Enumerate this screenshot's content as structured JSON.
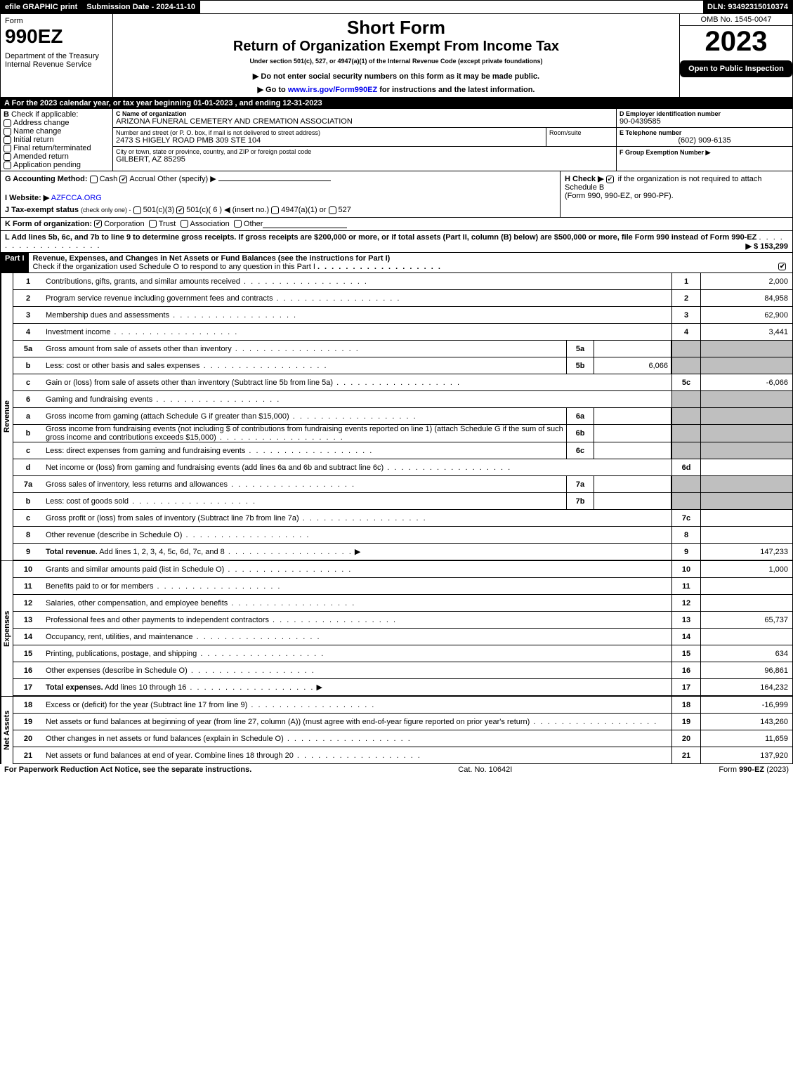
{
  "topbar": {
    "efile": "efile GRAPHIC print",
    "subdate_label": "Submission Date - 2024-11-10",
    "dln": "DLN: 93492315010374"
  },
  "header": {
    "form_word": "Form",
    "form_no": "990EZ",
    "dept1": "Department of the Treasury",
    "dept2": "Internal Revenue Service",
    "title1": "Short Form",
    "title2": "Return of Organization Exempt From Income Tax",
    "subtitle": "Under section 501(c), 527, or 4947(a)(1) of the Internal Revenue Code (except private foundations)",
    "note1": "▶ Do not enter social security numbers on this form as it may be made public.",
    "note2": "▶ Go to www.irs.gov/Form990EZ for instructions and the latest information.",
    "note2_link": "www.irs.gov/Form990EZ",
    "omb": "OMB No. 1545-0047",
    "year": "2023",
    "open": "Open to Public Inspection"
  },
  "A": "A  For the 2023 calendar year, or tax year beginning 01-01-2023 , and ending 12-31-2023",
  "B": {
    "label": "B",
    "check_if": "Check if applicable:",
    "opts": [
      "Address change",
      "Name change",
      "Initial return",
      "Final return/terminated",
      "Amended return",
      "Application pending"
    ]
  },
  "C": {
    "name_label": "C Name of organization",
    "name": "ARIZONA FUNERAL CEMETERY AND CREMATION ASSOCIATION",
    "addr_label": "Number and street (or P. O. box, if mail is not delivered to street address)",
    "room_label": "Room/suite",
    "addr": "2473 S HIGELY ROAD PMB 309 STE 104",
    "city_label": "City or town, state or province, country, and ZIP or foreign postal code",
    "city": "GILBERT, AZ  85295"
  },
  "D": {
    "label": "D Employer identification number",
    "val": "90-0439585"
  },
  "E": {
    "label": "E Telephone number",
    "val": "(602) 909-6135"
  },
  "F": {
    "label": "F Group Exemption Number  ▶"
  },
  "G": {
    "label": "G Accounting Method:",
    "cash": "Cash",
    "accrual": "Accrual",
    "other": "Other (specify) ▶"
  },
  "H": {
    "text1": "H  Check ▶",
    "text2": "if the organization is not required to attach Schedule B",
    "text3": "(Form 990, 990-EZ, or 990-PF)."
  },
  "I": {
    "label": "I Website: ▶",
    "val": "AZFCCA.ORG"
  },
  "J": {
    "label": "J Tax-exempt status",
    "sub": "(check only one) ‐",
    "o1": "501(c)(3)",
    "o2": "501(c)( 6 ) ◀ (insert no.)",
    "o3": "4947(a)(1) or",
    "o4": "527"
  },
  "K": {
    "label": "K Form of organization:",
    "o1": "Corporation",
    "o2": "Trust",
    "o3": "Association",
    "o4": "Other"
  },
  "L": {
    "text": "L Add lines 5b, 6c, and 7b to line 9 to determine gross receipts. If gross receipts are $200,000 or more, or if total assets (Part II, column (B) below) are $500,000 or more, file Form 990 instead of Form 990-EZ",
    "amount": "▶ $ 153,299"
  },
  "partI": {
    "tag": "Part I",
    "title": "Revenue, Expenses, and Changes in Net Assets or Fund Balances (see the instructions for Part I)",
    "check": "Check if the organization used Schedule O to respond to any question in this Part I"
  },
  "sections": {
    "revenue": "Revenue",
    "expenses": "Expenses",
    "netassets": "Net Assets"
  },
  "lines": {
    "1": {
      "n": "1",
      "d": "Contributions, gifts, grants, and similar amounts received",
      "r": "1",
      "v": "2,000"
    },
    "2": {
      "n": "2",
      "d": "Program service revenue including government fees and contracts",
      "r": "2",
      "v": "84,958"
    },
    "3": {
      "n": "3",
      "d": "Membership dues and assessments",
      "r": "3",
      "v": "62,900"
    },
    "4": {
      "n": "4",
      "d": "Investment income",
      "r": "4",
      "v": "3,441"
    },
    "5a": {
      "n": "5a",
      "d": "Gross amount from sale of assets other than inventory",
      "s": "5a",
      "sv": ""
    },
    "5b": {
      "n": "b",
      "d": "Less: cost or other basis and sales expenses",
      "s": "5b",
      "sv": "6,066"
    },
    "5c": {
      "n": "c",
      "d": "Gain or (loss) from sale of assets other than inventory (Subtract line 5b from line 5a)",
      "r": "5c",
      "v": "-6,066"
    },
    "6": {
      "n": "6",
      "d": "Gaming and fundraising events"
    },
    "6a": {
      "n": "a",
      "d": "Gross income from gaming (attach Schedule G if greater than $15,000)",
      "s": "6a",
      "sv": ""
    },
    "6b": {
      "n": "b",
      "d": "Gross income from fundraising events (not including $                of contributions from fundraising events reported on line 1) (attach Schedule G if the sum of such gross income and contributions exceeds $15,000)",
      "s": "6b",
      "sv": ""
    },
    "6c": {
      "n": "c",
      "d": "Less: direct expenses from gaming and fundraising events",
      "s": "6c",
      "sv": ""
    },
    "6d": {
      "n": "d",
      "d": "Net income or (loss) from gaming and fundraising events (add lines 6a and 6b and subtract line 6c)",
      "r": "6d",
      "v": ""
    },
    "7a": {
      "n": "7a",
      "d": "Gross sales of inventory, less returns and allowances",
      "s": "7a",
      "sv": ""
    },
    "7b": {
      "n": "b",
      "d": "Less: cost of goods sold",
      "s": "7b",
      "sv": ""
    },
    "7c": {
      "n": "c",
      "d": "Gross profit or (loss) from sales of inventory (Subtract line 7b from line 7a)",
      "r": "7c",
      "v": ""
    },
    "8": {
      "n": "8",
      "d": "Other revenue (describe in Schedule O)",
      "r": "8",
      "v": ""
    },
    "9": {
      "n": "9",
      "d": "Total revenue. Add lines 1, 2, 3, 4, 5c, 6d, 7c, and 8",
      "r": "9",
      "v": "147,233",
      "bold": true,
      "arrow": true
    },
    "10": {
      "n": "10",
      "d": "Grants and similar amounts paid (list in Schedule O)",
      "r": "10",
      "v": "1,000"
    },
    "11": {
      "n": "11",
      "d": "Benefits paid to or for members",
      "r": "11",
      "v": ""
    },
    "12": {
      "n": "12",
      "d": "Salaries, other compensation, and employee benefits",
      "r": "12",
      "v": ""
    },
    "13": {
      "n": "13",
      "d": "Professional fees and other payments to independent contractors",
      "r": "13",
      "v": "65,737"
    },
    "14": {
      "n": "14",
      "d": "Occupancy, rent, utilities, and maintenance",
      "r": "14",
      "v": ""
    },
    "15": {
      "n": "15",
      "d": "Printing, publications, postage, and shipping",
      "r": "15",
      "v": "634"
    },
    "16": {
      "n": "16",
      "d": "Other expenses (describe in Schedule O)",
      "r": "16",
      "v": "96,861"
    },
    "17": {
      "n": "17",
      "d": "Total expenses. Add lines 10 through 16",
      "r": "17",
      "v": "164,232",
      "bold": true,
      "arrow": true
    },
    "18": {
      "n": "18",
      "d": "Excess or (deficit) for the year (Subtract line 17 from line 9)",
      "r": "18",
      "v": "-16,999"
    },
    "19": {
      "n": "19",
      "d": "Net assets or fund balances at beginning of year (from line 27, column (A)) (must agree with end-of-year figure reported on prior year's return)",
      "r": "19",
      "v": "143,260"
    },
    "20": {
      "n": "20",
      "d": "Other changes in net assets or fund balances (explain in Schedule O)",
      "r": "20",
      "v": "11,659"
    },
    "21": {
      "n": "21",
      "d": "Net assets or fund balances at end of year. Combine lines 18 through 20",
      "r": "21",
      "v": "137,920"
    }
  },
  "footer": {
    "left": "For Paperwork Reduction Act Notice, see the separate instructions.",
    "mid": "Cat. No. 10642I",
    "right": "Form 990-EZ (2023)"
  }
}
